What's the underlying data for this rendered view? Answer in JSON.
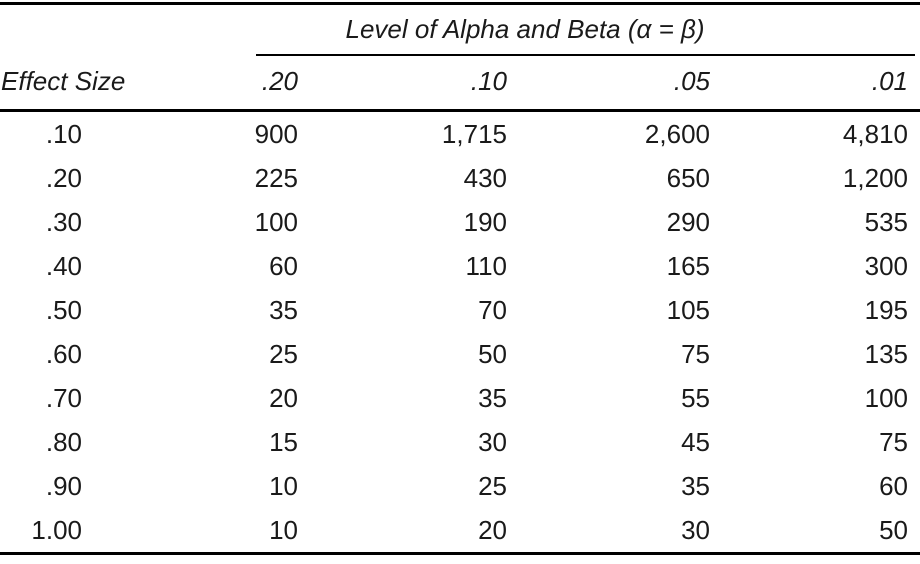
{
  "table": {
    "spanner": "Level of Alpha and Beta (α = β)",
    "effect_col_header": "Effect Size",
    "alpha_levels": [
      ".20",
      ".10",
      ".05",
      ".01"
    ],
    "rows": [
      {
        "effect": ".10",
        "values": [
          "900",
          "1,715",
          "2,600",
          "4,810"
        ]
      },
      {
        "effect": ".20",
        "values": [
          "225",
          "430",
          "650",
          "1,200"
        ]
      },
      {
        "effect": ".30",
        "values": [
          "100",
          "190",
          "290",
          "535"
        ]
      },
      {
        "effect": ".40",
        "values": [
          "60",
          "110",
          "165",
          "300"
        ]
      },
      {
        "effect": ".50",
        "values": [
          "35",
          "70",
          "105",
          "195"
        ]
      },
      {
        "effect": ".60",
        "values": [
          "25",
          "50",
          "75",
          "135"
        ]
      },
      {
        "effect": ".70",
        "values": [
          "20",
          "35",
          "55",
          "100"
        ]
      },
      {
        "effect": ".80",
        "values": [
          "15",
          "30",
          "45",
          "75"
        ]
      },
      {
        "effect": ".90",
        "values": [
          "10",
          "25",
          "35",
          "60"
        ]
      },
      {
        "effect": "1.00",
        "values": [
          "10",
          "20",
          "30",
          "50"
        ]
      }
    ],
    "style": {
      "text_color": "#1a1a1a",
      "rule_color": "#000000",
      "background": "#ffffff"
    }
  }
}
